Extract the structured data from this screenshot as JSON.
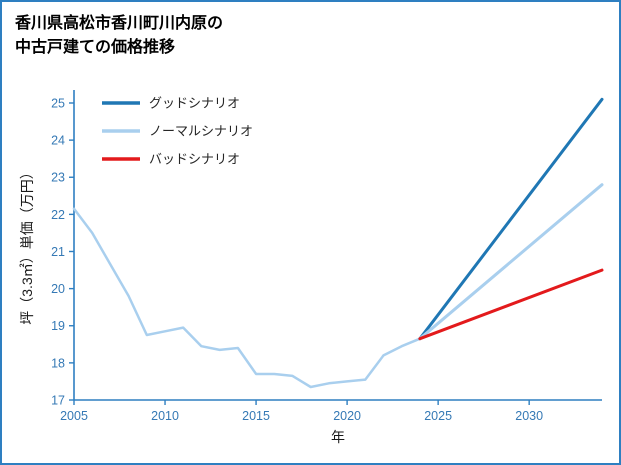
{
  "title": {
    "line1": "香川県高松市香川町川内原の",
    "line2": "中古戸建ての価格推移"
  },
  "chart_data": {
    "type": "line",
    "title": "香川県高松市香川町川内原の中古戸建ての価格推移",
    "xlabel": "年",
    "ylabel": "坪（3.3㎡）単価（万円）",
    "xlim": [
      2005,
      2034
    ],
    "ylim": [
      17,
      25.35
    ],
    "xticks": [
      2005,
      2010,
      2015,
      2020,
      2025,
      2030
    ],
    "yticks": [
      17,
      18,
      19,
      20,
      21,
      22,
      23,
      24,
      25
    ],
    "grid": false,
    "axis_color": "#2e7fc1",
    "legend_position": "top-left",
    "series": [
      {
        "name": "history",
        "label": "",
        "color": "#a9cfee",
        "width": 2.5,
        "x": [
          2005,
          2006,
          2007,
          2008,
          2009,
          2010,
          2011,
          2012,
          2013,
          2014,
          2015,
          2016,
          2017,
          2018,
          2019,
          2020,
          2021,
          2022,
          2023,
          2024
        ],
        "values": [
          22.15,
          21.5,
          20.65,
          19.8,
          18.75,
          18.85,
          18.95,
          18.45,
          18.35,
          18.4,
          17.7,
          17.7,
          17.65,
          17.35,
          17.45,
          17.5,
          17.55,
          18.2,
          18.45,
          18.65
        ]
      },
      {
        "name": "good-scenario",
        "label": "グッドシナリオ",
        "color": "#1f77b4",
        "width": 3,
        "x": [
          2024,
          2034
        ],
        "values": [
          18.65,
          25.1
        ]
      },
      {
        "name": "normal-scenario",
        "label": "ノーマルシナリオ",
        "color": "#a9cfee",
        "width": 3,
        "x": [
          2024,
          2034
        ],
        "values": [
          18.65,
          22.8
        ]
      },
      {
        "name": "bad-scenario",
        "label": "バッドシナリオ",
        "color": "#e31a1c",
        "width": 3,
        "x": [
          2024,
          2034
        ],
        "values": [
          18.65,
          20.5
        ]
      }
    ]
  }
}
